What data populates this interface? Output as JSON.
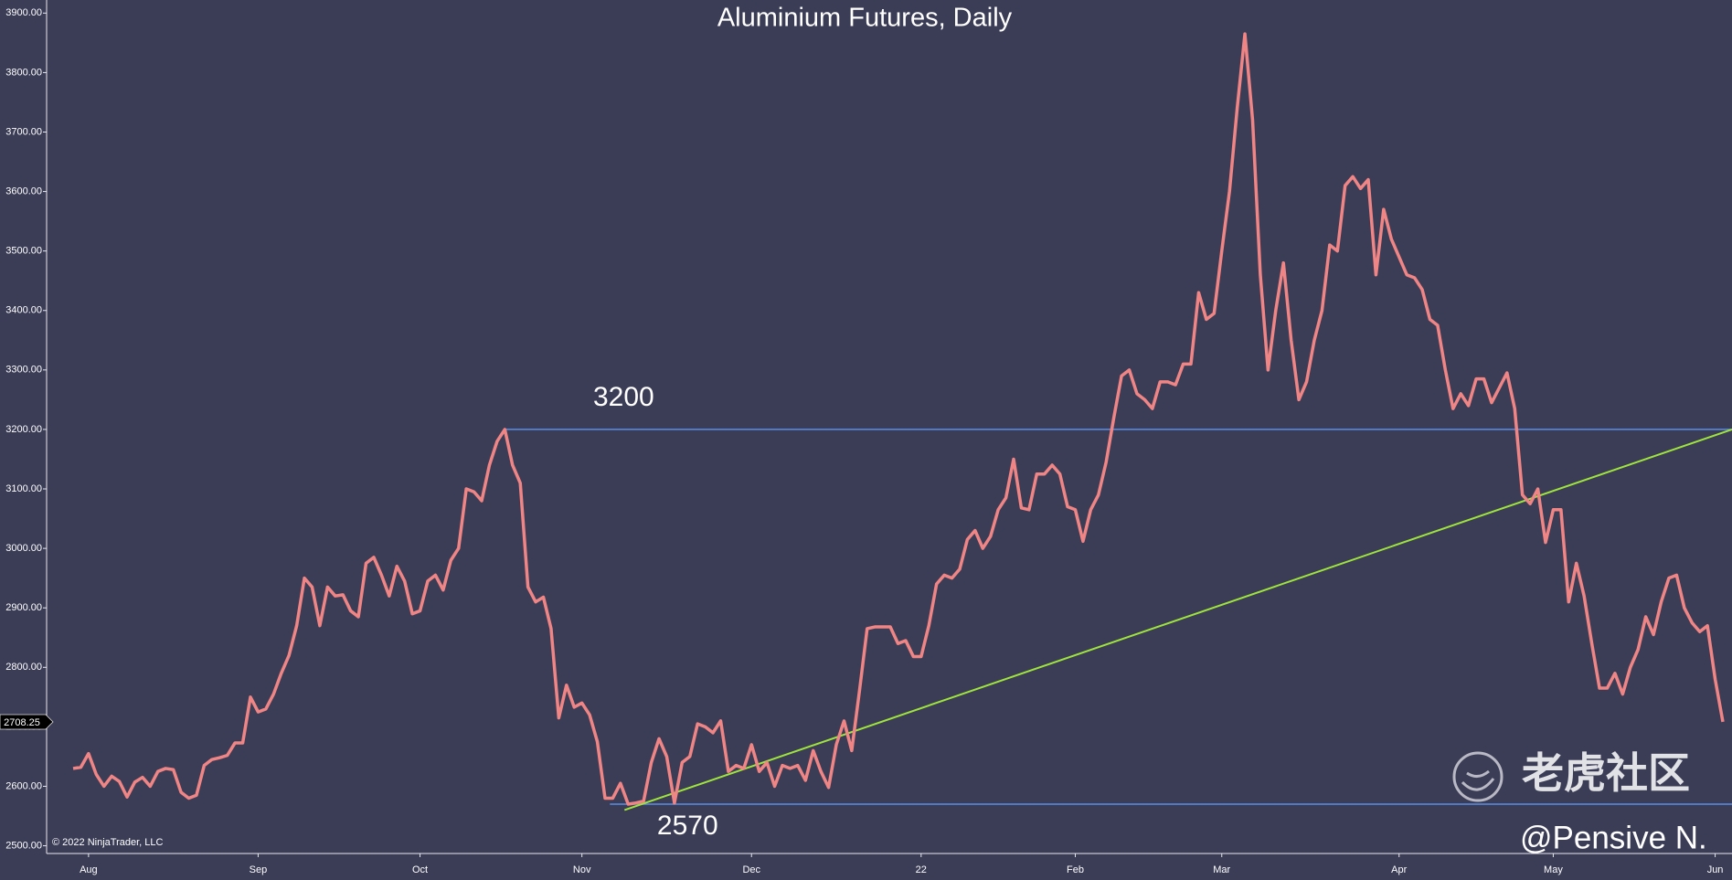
{
  "chart_data": {
    "type": "line",
    "title": "Aluminium Futures, Daily",
    "categories": [
      null,
      null,
      "Aug",
      null,
      null,
      null,
      null,
      null,
      null,
      null,
      null,
      null,
      null,
      null,
      null,
      null,
      null,
      null,
      null,
      null,
      null,
      null,
      null,
      null,
      "Sep",
      null,
      null,
      null,
      null,
      null,
      null,
      null,
      null,
      null,
      null,
      null,
      null,
      null,
      null,
      null,
      null,
      null,
      null,
      null,
      null,
      "Oct",
      null,
      null,
      null,
      null,
      null,
      null,
      null,
      null,
      null,
      null,
      null,
      null,
      null,
      null,
      null,
      null,
      null,
      null,
      null,
      null,
      "Nov",
      null,
      null,
      null,
      null,
      null,
      null,
      null,
      null,
      null,
      null,
      null,
      null,
      null,
      null,
      null,
      null,
      null,
      null,
      null,
      null,
      null,
      "Dec",
      null,
      null,
      null,
      null,
      null,
      null,
      null,
      null,
      null,
      null,
      null,
      null,
      null,
      null,
      null,
      null,
      null,
      null,
      null,
      null,
      null,
      "22",
      null,
      null,
      null,
      null,
      null,
      null,
      null,
      null,
      null,
      null,
      null,
      null,
      null,
      null,
      null,
      null,
      null,
      null,
      null,
      "Feb",
      null,
      null,
      null,
      null,
      null,
      null,
      null,
      null,
      null,
      null,
      null,
      null,
      null,
      null,
      null,
      null,
      null,
      null,
      "Mar",
      null,
      null,
      null,
      null,
      null,
      null,
      null,
      null,
      null,
      null,
      null,
      null,
      null,
      null,
      null,
      null,
      null,
      null,
      null,
      null,
      null,
      null,
      "Apr",
      null,
      null,
      null,
      null,
      null,
      null,
      null,
      null,
      null,
      null,
      null,
      null,
      null,
      null,
      null,
      null,
      null,
      null,
      null,
      "May",
      null,
      null,
      null,
      null,
      null,
      null,
      null,
      null,
      null,
      null,
      null,
      null,
      null,
      null,
      null,
      null,
      null,
      null,
      null,
      null,
      "Jun",
      null
    ],
    "values": [
      2630,
      2632,
      2655,
      2620,
      2600,
      2617,
      2608,
      2582,
      2607,
      2615,
      2600,
      2625,
      2630,
      2628,
      2590,
      2580,
      2585,
      2635,
      2645,
      2648,
      2652,
      2673,
      2673,
      2750,
      2725,
      2730,
      2755,
      2790,
      2820,
      2870,
      2950,
      2935,
      2870,
      2935,
      2920,
      2922,
      2895,
      2885,
      2975,
      2985,
      2955,
      2920,
      2970,
      2945,
      2890,
      2895,
      2945,
      2955,
      2930,
      2980,
      3000,
      3100,
      3095,
      3080,
      3140,
      3180,
      3200,
      3140,
      3110,
      2935,
      2910,
      2918,
      2865,
      2715,
      2770,
      2733,
      2740,
      2720,
      2675,
      2580,
      2580,
      2605,
      2570,
      2572,
      2575,
      2640,
      2680,
      2650,
      2572,
      2640,
      2650,
      2705,
      2700,
      2690,
      2710,
      2625,
      2635,
      2630,
      2670,
      2625,
      2640,
      2600,
      2635,
      2630,
      2635,
      2610,
      2660,
      2625,
      2598,
      2670,
      2710,
      2660,
      2760,
      2865,
      2868,
      2868,
      2868,
      2840,
      2845,
      2818,
      2818,
      2870,
      2940,
      2955,
      2950,
      2965,
      3015,
      3030,
      3000,
      3020,
      3065,
      3085,
      3150,
      3068,
      3065,
      3125,
      3125,
      3140,
      3125,
      3070,
      3065,
      3012,
      3065,
      3090,
      3145,
      3220,
      3290,
      3300,
      3260,
      3250,
      3235,
      3280,
      3280,
      3275,
      3310,
      3310,
      3430,
      3385,
      3395,
      3500,
      3600,
      3740,
      3865,
      3720,
      3460,
      3300,
      3400,
      3480,
      3350,
      3250,
      3280,
      3350,
      3400,
      3510,
      3500,
      3610,
      3625,
      3605,
      3620,
      3460,
      3570,
      3520,
      3490,
      3460,
      3455,
      3435,
      3385,
      3375,
      3300,
      3235,
      3260,
      3240,
      3285,
      3285,
      3245,
      3270,
      3295,
      3235,
      3090,
      3075,
      3100,
      3010,
      3065,
      3065,
      2910,
      2975,
      2920,
      2840,
      2765,
      2765,
      2790,
      2755,
      2800,
      2830,
      2885,
      2855,
      2910,
      2950,
      2955,
      2900,
      2875,
      2860,
      2870,
      2780,
      2708.25
    ],
    "color": "#ef8585",
    "ylim": [
      2487,
      3922
    ],
    "yticks": [
      {
        "value": 2500,
        "label": "2500.00"
      },
      {
        "value": 2600,
        "label": "2600.00"
      },
      {
        "value": 2700,
        "label": "2700.00"
      },
      {
        "value": 2800,
        "label": "2800.00"
      },
      {
        "value": 2900,
        "label": "2900.00"
      },
      {
        "value": 3000,
        "label": "3000.00"
      },
      {
        "value": 3100,
        "label": "3100.00"
      },
      {
        "value": 3200,
        "label": "3200.00"
      },
      {
        "value": 3300,
        "label": "3300.00"
      },
      {
        "value": 3400,
        "label": "3400.00"
      },
      {
        "value": 3500,
        "label": "3500.00"
      },
      {
        "value": 3600,
        "label": "3600.00"
      },
      {
        "value": 3700,
        "label": "3700.00"
      },
      {
        "value": 3800,
        "label": "3800.00"
      },
      {
        "value": 3900,
        "label": "3900.00"
      }
    ],
    "grid": false,
    "levels": [
      {
        "value": 3200,
        "color": "#5b8fe6"
      },
      {
        "value": 2570,
        "color": "#5b8fe6"
      }
    ],
    "trendline": {
      "values": [
        2560,
        3200
      ],
      "color": "#9fe43c"
    },
    "copyright": "© 2022 NinjaTrader, LLC",
    "watermark": {
      "logo_text": "老虎社区",
      "handle": "@Pensive N."
    }
  }
}
